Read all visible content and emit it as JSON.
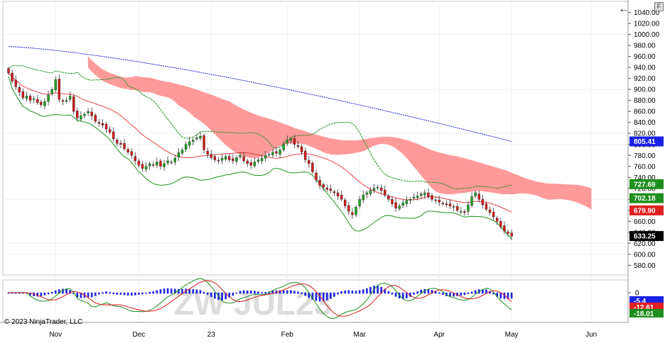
{
  "copyright": "© 2023 NinjaTrader, LLC",
  "watermark": "ZW JUL23",
  "icons": {
    "back": "left-arrow-icon",
    "menu": "panel-menu-icon"
  },
  "chart_data": {
    "type": "candlestick",
    "instrument": "ZW JUL23",
    "x_labels": [
      {
        "label": "Nov",
        "i": 13
      },
      {
        "label": "Dec",
        "i": 36
      },
      {
        "label": "23",
        "i": 56
      },
      {
        "label": "Feb",
        "i": 77
      },
      {
        "label": "Mar",
        "i": 97
      },
      {
        "label": "Apr",
        "i": 119
      },
      {
        "label": "May",
        "i": 139
      },
      {
        "label": "Jun",
        "i": 161
      }
    ],
    "x_bars_total": 170,
    "last_bar_index": 139,
    "price_axis": {
      "ylim": [
        565,
        1055
      ],
      "ticks": [
        580,
        600,
        620,
        640,
        660,
        680,
        700,
        720,
        740,
        760,
        780,
        800,
        820,
        840,
        860,
        880,
        900,
        920,
        940,
        960,
        980,
        1000,
        1020,
        1040
      ]
    },
    "closes": [
      930,
      915,
      905,
      895,
      885,
      888,
      880,
      883,
      876,
      872,
      878,
      890,
      900,
      918,
      882,
      878,
      880,
      888,
      860,
      848,
      852,
      855,
      860,
      852,
      842,
      838,
      835,
      828,
      822,
      810,
      802,
      800,
      792,
      786,
      780,
      770,
      762,
      756,
      760,
      765,
      762,
      768,
      760,
      765,
      770,
      768,
      775,
      785,
      790,
      800,
      805,
      808,
      812,
      815,
      790,
      782,
      776,
      772,
      770,
      775,
      778,
      772,
      770,
      776,
      780,
      770,
      765,
      762,
      768,
      772,
      775,
      780,
      782,
      786,
      784,
      790,
      800,
      808,
      810,
      800,
      796,
      786,
      772,
      765,
      750,
      735,
      725,
      722,
      718,
      716,
      712,
      706,
      700,
      688,
      678,
      672,
      686,
      700,
      708,
      712,
      716,
      720,
      722,
      716,
      708,
      700,
      692,
      684,
      688,
      694,
      698,
      700,
      704,
      706,
      710,
      712,
      705,
      700,
      698,
      695,
      692,
      690,
      688,
      686,
      680,
      678,
      676,
      690,
      705,
      712,
      700,
      690,
      682,
      676,
      668,
      660,
      650,
      642,
      638,
      633
    ],
    "ohlc_series": "closes",
    "indicators": {
      "sma_blue_last": 805.41,
      "green_band_upper_last": 727.69,
      "green_band_lower_last": 702.18,
      "red_line_last": 679.9
    },
    "ichimoku_cloud_note": "green and red cloud regions",
    "last_price": 633.25,
    "badges": [
      {
        "value": "805.41",
        "color": "#1a22e6"
      },
      {
        "value": "727.69",
        "color": "#1e8f1e"
      },
      {
        "value": "702.18",
        "color": "#1e8f1e"
      },
      {
        "value": "679.90",
        "color": "#e02020"
      },
      {
        "value": "633.25",
        "color": "#000000"
      }
    ],
    "macd": {
      "ylim": [
        -30,
        12
      ],
      "tick": 0,
      "tick_label": "0",
      "badges": [
        {
          "value": "-5.4",
          "color": "#1a22e6"
        },
        {
          "value": "-12.61",
          "color": "#e02020"
        },
        {
          "value": "-18.01",
          "color": "#1e8f1e"
        }
      ]
    },
    "colors": {
      "up": "#1fa31f",
      "down": "#d61a1a",
      "cloud_green": "#7fc77f",
      "cloud_red": "#ff9a9a",
      "sma_blue": "#2020e0",
      "band_green": "#1e8f1e",
      "red_line": "#e03030"
    }
  }
}
